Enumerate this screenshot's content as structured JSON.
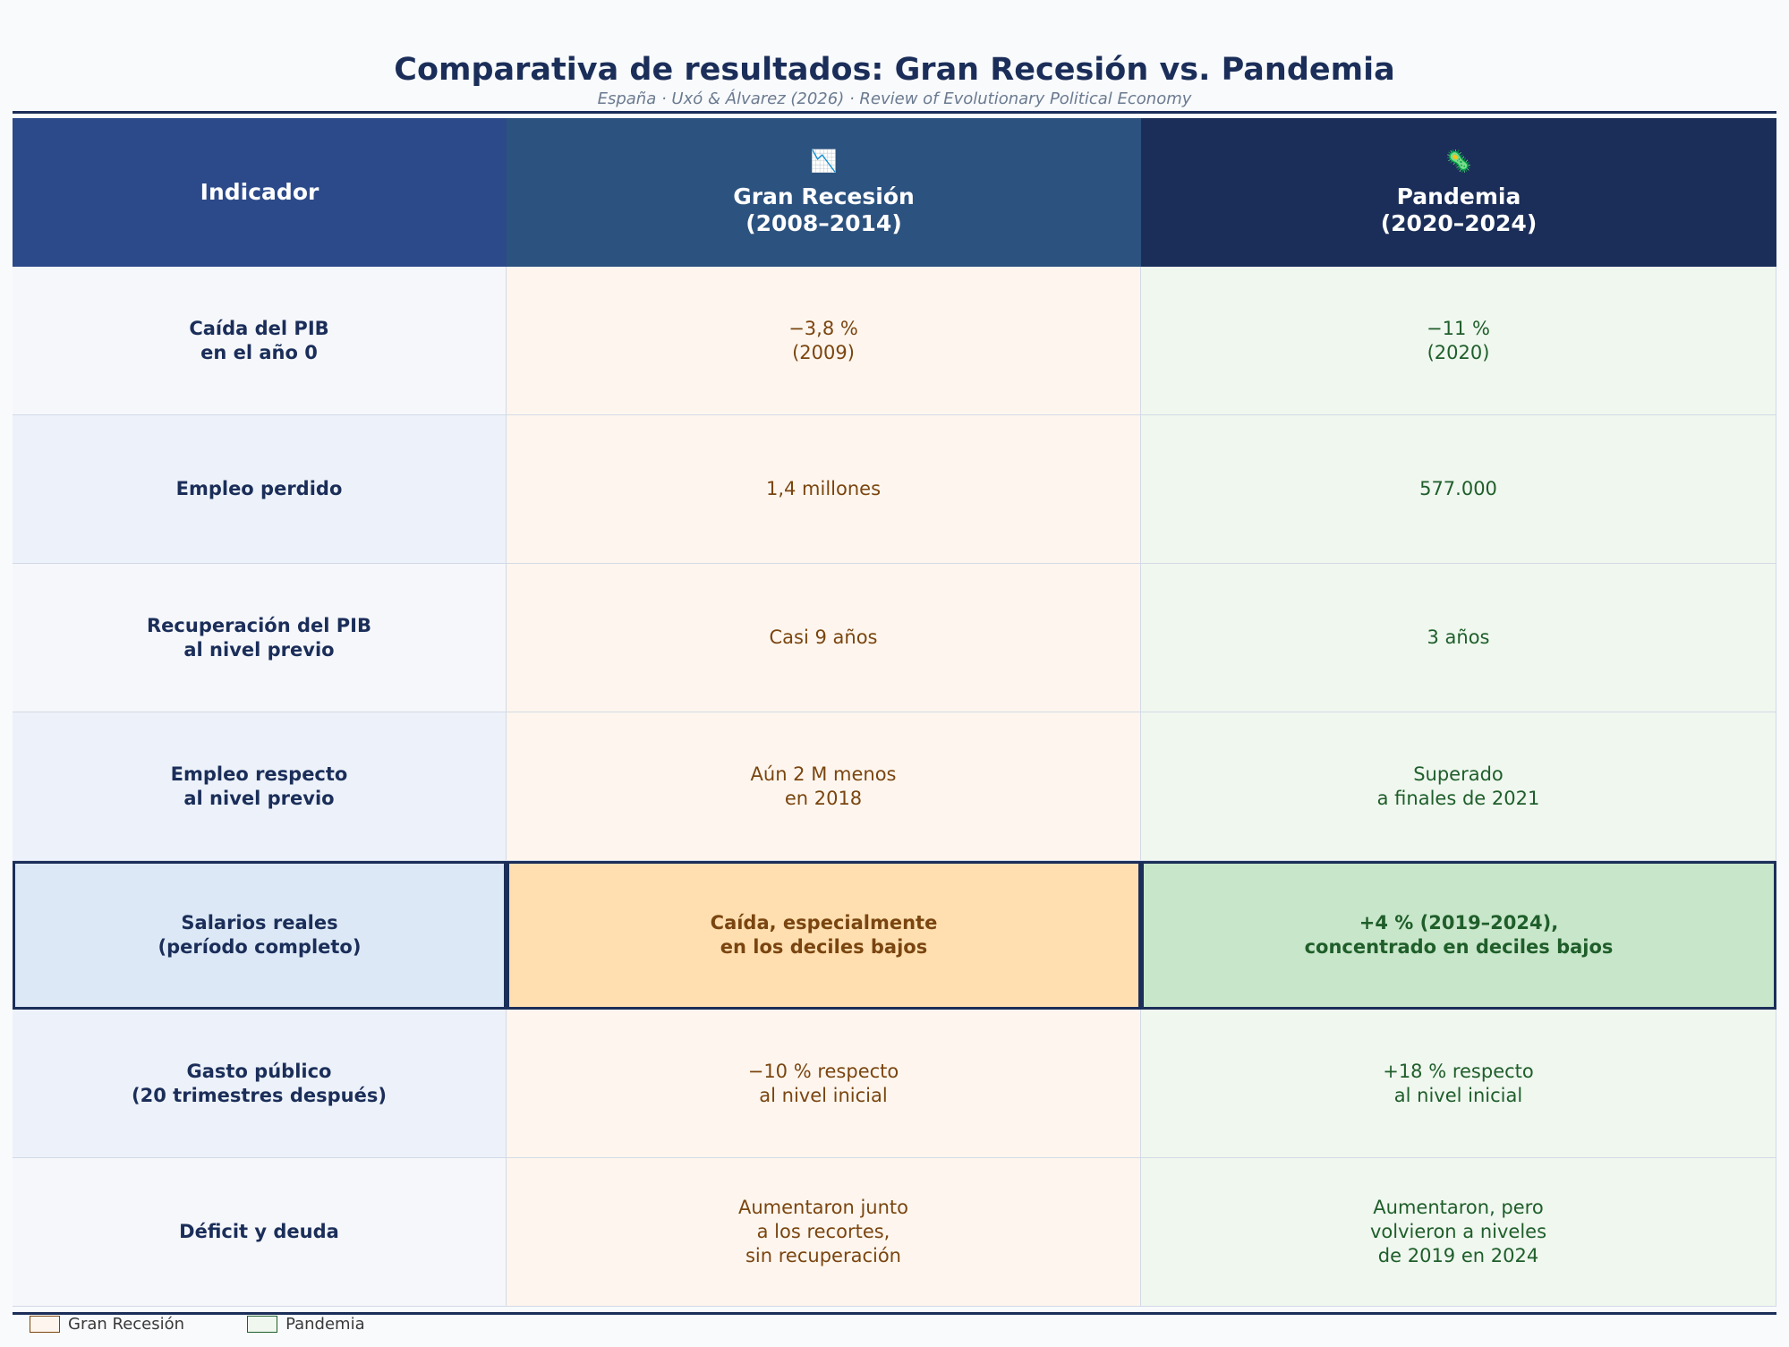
{
  "header": {
    "title": "Comparativa de resultados: Gran Recesión vs. Pandemia",
    "subtitle": "España · Uxó & Álvarez (2026) · Review of Evolutionary Political Economy"
  },
  "table": {
    "columns": {
      "indicator": "Indicador",
      "gran_recesion": "Gran Recesión\n(2008–2014)",
      "pandemia": "Pandemia\n(2020–2024)"
    },
    "header_icons": [
      "chart-icon",
      "virus-icon"
    ],
    "rows": [
      {
        "indicator": "Caída del PIB\nen el año 0",
        "gran_recesion": "−3,8 %\n(2009)",
        "pandemia": "−11 %\n(2020)"
      },
      {
        "indicator": "Empleo perdido",
        "gran_recesion": "1,4 millones",
        "pandemia": "577.000"
      },
      {
        "indicator": "Recuperación del PIB\nal nivel previo",
        "gran_recesion": "Casi 9 años",
        "pandemia": "3 años"
      },
      {
        "indicator": "Empleo respecto\nal nivel previo",
        "gran_recesion": "Aún 2 M menos\nen 2018",
        "pandemia": "Superado\na finales de 2021"
      },
      {
        "indicator": "Salarios reales\n(período completo)",
        "gran_recesion": "Caída, especialmente\nen los deciles bajos",
        "pandemia": "+4 % (2019–2024),\nconcentrado en deciles bajos",
        "highlight": true
      },
      {
        "indicator": "Gasto público\n(20 trimestres después)",
        "gran_recesion": "−10 % respecto\nal nivel inicial",
        "pandemia": "+18 % respecto\nal nivel inicial"
      },
      {
        "indicator": "Déficit y deuda",
        "gran_recesion": "Aumentaron junto\na los recortes,\nsin recuperación",
        "pandemia": "Aumentaron, pero\nvolvieron a niveles\nde 2019 en 2024"
      }
    ]
  },
  "legend": {
    "gran_recesion": "Gran Recesión",
    "pandemia": "Pandemia"
  },
  "colors": {
    "navy": "#1b2e59",
    "gran_recesion_text": "#7a4510",
    "pandemia_text": "#1f5e2a",
    "highlight_gr": "#ffdfb0",
    "highlight_pa": "#c8e6ca"
  }
}
